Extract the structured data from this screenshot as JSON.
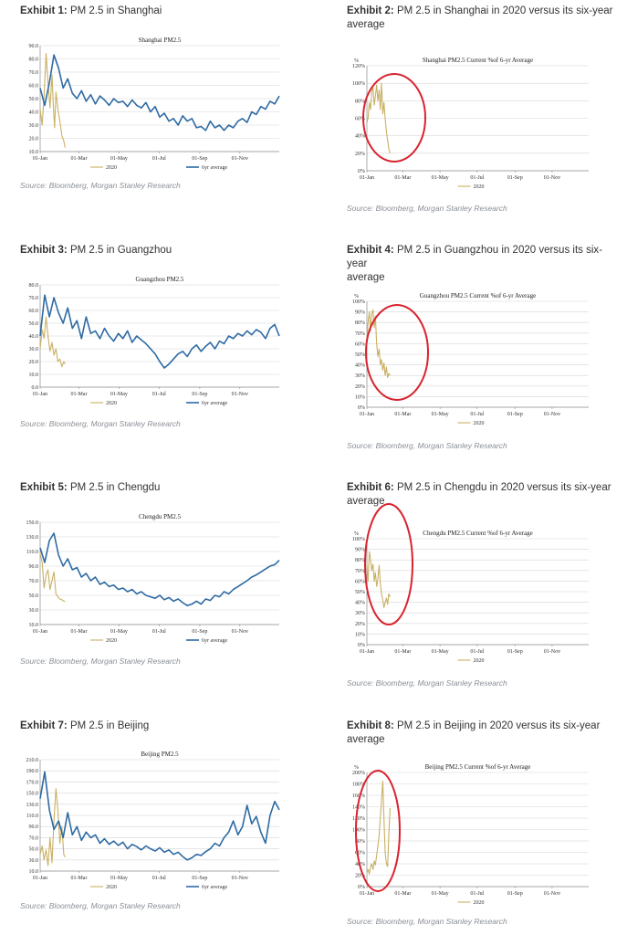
{
  "colors": {
    "avg": "#2e6aa3",
    "y2020": "#c9b063",
    "circle": "#d9232e",
    "grid": "#d6d6d6"
  },
  "source_text": "Source: Bloomberg, Morgan Stanley Research",
  "exhibits": [
    {
      "label": "Exhibit 1:",
      "title": "PM 2.5 in Shanghai",
      "title2": ""
    },
    {
      "label": "Exhibit 2:",
      "title": "PM 2.5 in Shanghai in 2020 versus its six-year",
      "title2": "average"
    },
    {
      "label": "Exhibit 3:",
      "title": "PM 2.5 in Guangzhou",
      "title2": ""
    },
    {
      "label": "Exhibit 4:",
      "title": "PM 2.5 in Guangzhou in 2020 versus its six-year",
      "title2": "average"
    },
    {
      "label": "Exhibit 5:",
      "title": "PM 2.5 in Chengdu",
      "title2": ""
    },
    {
      "label": "Exhibit 6:",
      "title": "PM 2.5 in Chengdu in 2020 versus its six-year",
      "title2": "average"
    },
    {
      "label": "Exhibit 7:",
      "title": "PM 2.5 in Beijing",
      "title2": ""
    },
    {
      "label": "Exhibit 8:",
      "title": "PM 2.5 in Beijing in 2020 versus its six-year",
      "title2": "average"
    }
  ],
  "chart_data": [
    {
      "type": "line",
      "title": "Shanghai PM2.5",
      "x_ticks": [
        "01-Jan",
        "01-Mar",
        "01-May",
        "01-Jul",
        "01-Sep",
        "01-Nov"
      ],
      "y_ticks": [
        "10.0",
        "20.0",
        "30.0",
        "40.0",
        "50.0",
        "60.0",
        "70.0",
        "80.0",
        "90.0"
      ],
      "ylim": [
        10,
        90
      ],
      "grid": true,
      "legend_position": "bottom",
      "series": [
        {
          "name": "2020",
          "x": [
            0,
            3,
            6,
            9,
            12,
            15,
            18,
            20,
            22,
            24,
            27,
            30,
            33,
            36,
            38
          ],
          "y": [
            42,
            30,
            52,
            84,
            62,
            43,
            68,
            45,
            28,
            55,
            42,
            33,
            22,
            18,
            13
          ]
        },
        {
          "name": "6yr average",
          "x": [
            0,
            7,
            14,
            21,
            28,
            35,
            42,
            49,
            56,
            63,
            70,
            77,
            84,
            91,
            98,
            105,
            112,
            119,
            126,
            133,
            140,
            147,
            154,
            161,
            168,
            175,
            182,
            189,
            196,
            203,
            210,
            217,
            224,
            231,
            238,
            245,
            252,
            259,
            266,
            273,
            280,
            287,
            294,
            301,
            308,
            315,
            322,
            329,
            336,
            343,
            350,
            357,
            364
          ],
          "y": [
            58,
            45,
            62,
            83,
            73,
            58,
            65,
            54,
            50,
            56,
            48,
            53,
            46,
            52,
            49,
            45,
            50,
            47,
            48,
            44,
            49,
            45,
            43,
            47,
            40,
            44,
            36,
            39,
            33,
            35,
            30,
            37,
            33,
            35,
            28,
            29,
            26,
            33,
            28,
            30,
            26,
            30,
            28,
            33,
            35,
            32,
            40,
            38,
            44,
            42,
            48,
            46,
            52
          ]
        }
      ]
    },
    {
      "type": "line",
      "title": "Shanghai PM2.5 Current %of 6-yr Average",
      "ylabel": "%",
      "x_ticks": [
        "01-Jan",
        "01-Mar",
        "01-May",
        "01-Jul",
        "01-Sep",
        "01-Nov"
      ],
      "y_ticks": [
        "0%",
        "20%",
        "40%",
        "60%",
        "80%",
        "100%",
        "120%"
      ],
      "ylim": [
        0,
        120
      ],
      "grid": true,
      "legend_position": "bottom",
      "series": [
        {
          "name": "2020",
          "x": [
            0,
            2,
            4,
            6,
            8,
            10,
            12,
            14,
            16,
            18,
            20,
            22,
            24,
            26,
            28,
            30,
            32,
            34,
            36,
            38
          ],
          "y": [
            55,
            60,
            78,
            70,
            90,
            95,
            75,
            85,
            98,
            80,
            92,
            70,
            100,
            65,
            78,
            60,
            45,
            35,
            25,
            20
          ]
        }
      ]
    },
    {
      "type": "line",
      "title": "Guangzhou PM2.5",
      "x_ticks": [
        "01-Jan",
        "01-Mar",
        "01-May",
        "01-Jul",
        "01-Sep",
        "01-Nov"
      ],
      "y_ticks": [
        "0.0",
        "10.0",
        "20.0",
        "30.0",
        "40.0",
        "50.0",
        "60.0",
        "70.0",
        "80.0"
      ],
      "ylim": [
        0,
        80
      ],
      "grid": true,
      "legend_position": "bottom",
      "series": [
        {
          "name": "2020",
          "x": [
            0,
            3,
            6,
            9,
            12,
            15,
            18,
            21,
            24,
            27,
            30,
            33,
            36,
            38
          ],
          "y": [
            30,
            45,
            38,
            55,
            40,
            28,
            35,
            25,
            30,
            20,
            22,
            16,
            20,
            18
          ]
        },
        {
          "name": "6yr average",
          "x": [
            0,
            7,
            14,
            21,
            28,
            35,
            42,
            49,
            56,
            63,
            70,
            77,
            84,
            91,
            98,
            105,
            112,
            119,
            126,
            133,
            140,
            147,
            154,
            161,
            168,
            175,
            182,
            189,
            196,
            203,
            210,
            217,
            224,
            231,
            238,
            245,
            252,
            259,
            266,
            273,
            280,
            287,
            294,
            301,
            308,
            315,
            322,
            329,
            336,
            343,
            350,
            357,
            364
          ],
          "y": [
            40,
            72,
            55,
            70,
            58,
            50,
            62,
            46,
            52,
            38,
            55,
            42,
            44,
            38,
            46,
            40,
            36,
            42,
            38,
            44,
            35,
            40,
            37,
            34,
            30,
            26,
            20,
            15,
            18,
            22,
            26,
            28,
            24,
            30,
            33,
            28,
            32,
            35,
            30,
            36,
            34,
            40,
            38,
            42,
            40,
            44,
            41,
            45,
            43,
            38,
            46,
            49,
            40
          ]
        }
      ]
    },
    {
      "type": "line",
      "title": "Guangzhou PM2.5 Current %of 6-yr Average",
      "ylabel": "%",
      "x_ticks": [
        "01-Jan",
        "01-Mar",
        "01-May",
        "01-Jul",
        "01-Sep",
        "01-Nov"
      ],
      "y_ticks": [
        "0%",
        "10%",
        "20%",
        "30%",
        "40%",
        "50%",
        "60%",
        "70%",
        "80%",
        "90%",
        "100%"
      ],
      "ylim": [
        0,
        100
      ],
      "grid": true,
      "legend_position": "bottom",
      "series": [
        {
          "name": "2020",
          "x": [
            0,
            2,
            4,
            6,
            8,
            10,
            12,
            14,
            16,
            18,
            20,
            22,
            24,
            26,
            28,
            30,
            32,
            34,
            36,
            38
          ],
          "y": [
            65,
            80,
            90,
            72,
            88,
            92,
            75,
            86,
            60,
            48,
            55,
            40,
            45,
            35,
            42,
            30,
            38,
            28,
            32,
            30
          ]
        }
      ]
    },
    {
      "type": "line",
      "title": "Chengdu PM2.5",
      "x_ticks": [
        "01-Jan",
        "01-Mar",
        "01-May",
        "01-Jul",
        "01-Sep",
        "01-Nov"
      ],
      "y_ticks": [
        "10.0",
        "30.0",
        "50.0",
        "70.0",
        "90.0",
        "110.0",
        "130.0",
        "150.0"
      ],
      "ylim": [
        10,
        150
      ],
      "grid": true,
      "legend_position": "bottom",
      "series": [
        {
          "name": "2020",
          "x": [
            0,
            3,
            6,
            9,
            12,
            15,
            18,
            21,
            24,
            27,
            30,
            33,
            36,
            38
          ],
          "y": [
            108,
            95,
            60,
            78,
            85,
            58,
            70,
            82,
            52,
            48,
            45,
            44,
            42,
            42
          ]
        },
        {
          "name": "6yr average",
          "x": [
            0,
            7,
            14,
            21,
            28,
            35,
            42,
            49,
            56,
            63,
            70,
            77,
            84,
            91,
            98,
            105,
            112,
            119,
            126,
            133,
            140,
            147,
            154,
            161,
            168,
            175,
            182,
            189,
            196,
            203,
            210,
            217,
            224,
            231,
            238,
            245,
            252,
            259,
            266,
            273,
            280,
            287,
            294,
            301,
            308,
            315,
            322,
            329,
            336,
            343,
            350,
            357,
            364
          ],
          "y": [
            115,
            95,
            125,
            135,
            105,
            90,
            100,
            85,
            88,
            75,
            80,
            70,
            75,
            65,
            68,
            62,
            64,
            58,
            60,
            55,
            58,
            52,
            55,
            50,
            48,
            46,
            50,
            44,
            47,
            42,
            45,
            40,
            36,
            38,
            42,
            38,
            45,
            43,
            50,
            48,
            55,
            52,
            58,
            62,
            66,
            70,
            75,
            78,
            82,
            86,
            90,
            92,
            98
          ]
        }
      ]
    },
    {
      "type": "line",
      "title": "Chengdu PM2.5 Current %of 6-yr Average",
      "ylabel": "%",
      "x_ticks": [
        "01-Jan",
        "01-Mar",
        "01-May",
        "01-Jul",
        "01-Sep",
        "01-Nov"
      ],
      "y_ticks": [
        "0%",
        "10%",
        "20%",
        "30%",
        "40%",
        "50%",
        "60%",
        "70%",
        "80%",
        "90%",
        "100%"
      ],
      "ylim": [
        0,
        100
      ],
      "grid": true,
      "legend_position": "bottom",
      "series": [
        {
          "name": "2020",
          "x": [
            0,
            2,
            4,
            6,
            8,
            10,
            12,
            14,
            16,
            18,
            20,
            22,
            24,
            26,
            28,
            30,
            32,
            34,
            36,
            38
          ],
          "y": [
            75,
            60,
            88,
            80,
            70,
            76,
            60,
            68,
            55,
            62,
            75,
            58,
            48,
            42,
            35,
            40,
            44,
            38,
            48,
            45
          ]
        }
      ]
    },
    {
      "type": "line",
      "title": "Beijing PM2.5",
      "x_ticks": [
        "01-Jan",
        "01-Mar",
        "01-May",
        "01-Jul",
        "01-Sep",
        "01-Nov"
      ],
      "y_ticks": [
        "10.0",
        "30.0",
        "50.0",
        "70.0",
        "90.0",
        "110.0",
        "130.0",
        "150.0",
        "170.0",
        "190.0",
        "210.0"
      ],
      "ylim": [
        10,
        210
      ],
      "grid": true,
      "legend_position": "bottom",
      "series": [
        {
          "name": "2020",
          "x": [
            0,
            3,
            6,
            9,
            12,
            15,
            18,
            21,
            24,
            27,
            30,
            33,
            36,
            38
          ],
          "y": [
            40,
            55,
            30,
            48,
            20,
            70,
            25,
            100,
            158,
            120,
            60,
            90,
            40,
            35
          ]
        },
        {
          "name": "6yr average",
          "x": [
            0,
            7,
            14,
            21,
            28,
            35,
            42,
            49,
            56,
            63,
            70,
            77,
            84,
            91,
            98,
            105,
            112,
            119,
            126,
            133,
            140,
            147,
            154,
            161,
            168,
            175,
            182,
            189,
            196,
            203,
            210,
            217,
            224,
            231,
            238,
            245,
            252,
            259,
            266,
            273,
            280,
            287,
            294,
            301,
            308,
            315,
            322,
            329,
            336,
            343,
            350,
            357,
            364
          ],
          "y": [
            140,
            188,
            120,
            85,
            100,
            70,
            115,
            75,
            90,
            65,
            80,
            70,
            75,
            60,
            68,
            58,
            64,
            56,
            62,
            50,
            58,
            54,
            48,
            55,
            50,
            46,
            52,
            44,
            48,
            40,
            44,
            36,
            30,
            34,
            40,
            38,
            45,
            50,
            60,
            55,
            70,
            80,
            100,
            75,
            90,
            128,
            95,
            108,
            80,
            60,
            110,
            135,
            120
          ]
        }
      ]
    },
    {
      "type": "line",
      "title": "Beijing PM2.5 Current %of 6-yr Average",
      "ylabel": "%",
      "x_ticks": [
        "01-Jan",
        "01-Mar",
        "01-May",
        "01-Jul",
        "01-Sep",
        "01-Nov"
      ],
      "y_ticks": [
        "0%",
        "20%",
        "40%",
        "60%",
        "80%",
        "100%",
        "120%",
        "140%",
        "160%",
        "180%",
        "200%"
      ],
      "ylim": [
        0,
        200
      ],
      "grid": true,
      "legend_position": "bottom",
      "series": [
        {
          "name": "2020",
          "x": [
            0,
            2,
            4,
            6,
            8,
            10,
            12,
            14,
            16,
            18,
            20,
            22,
            24,
            26,
            28,
            30,
            32,
            34,
            36,
            38
          ],
          "y": [
            25,
            30,
            22,
            35,
            40,
            30,
            45,
            38,
            55,
            70,
            90,
            120,
            150,
            185,
            120,
            60,
            40,
            35,
            90,
            138
          ]
        }
      ]
    }
  ]
}
